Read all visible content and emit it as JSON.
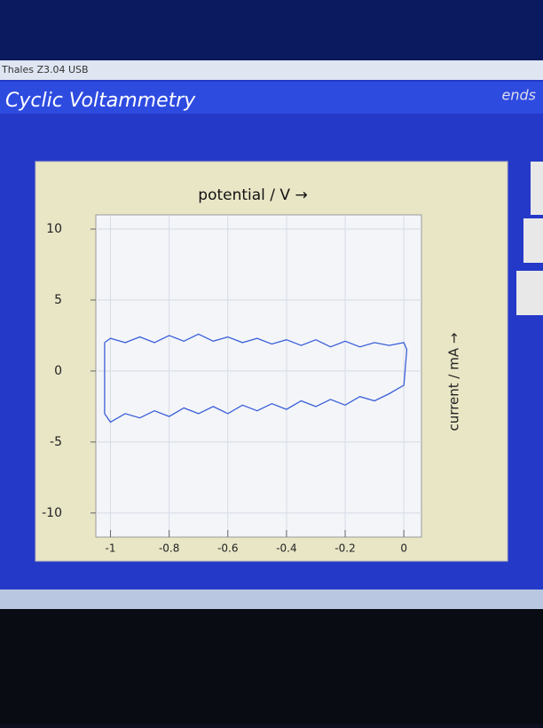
{
  "window_title": "Thales Z3.04 USB",
  "header": {
    "title": "Cyclic Voltammetry",
    "right_text": "ends"
  },
  "chart_data": {
    "type": "line",
    "xlabel": "potential / V →",
    "ylabel": "current / mA →",
    "x": [
      -1.02,
      -1.0,
      -0.95,
      -0.9,
      -0.85,
      -0.8,
      -0.75,
      -0.7,
      -0.65,
      -0.6,
      -0.55,
      -0.5,
      -0.45,
      -0.4,
      -0.35,
      -0.3,
      -0.25,
      -0.2,
      -0.15,
      -0.1,
      -0.05,
      0.0,
      0.01,
      0.0,
      -0.05,
      -0.1,
      -0.15,
      -0.2,
      -0.25,
      -0.3,
      -0.35,
      -0.4,
      -0.45,
      -0.5,
      -0.55,
      -0.6,
      -0.65,
      -0.7,
      -0.75,
      -0.8,
      -0.85,
      -0.9,
      -0.95,
      -1.0,
      -1.02,
      -1.02
    ],
    "values": [
      2.0,
      2.3,
      2.0,
      2.4,
      2.0,
      2.5,
      2.1,
      2.6,
      2.1,
      2.4,
      2.0,
      2.3,
      1.9,
      2.2,
      1.8,
      2.2,
      1.7,
      2.1,
      1.7,
      2.0,
      1.8,
      2.0,
      1.5,
      -1.0,
      -1.6,
      -2.1,
      -1.8,
      -2.4,
      -2.0,
      -2.5,
      -2.1,
      -2.7,
      -2.3,
      -2.8,
      -2.4,
      -3.0,
      -2.5,
      -3.0,
      -2.6,
      -3.2,
      -2.8,
      -3.3,
      -3.0,
      -3.6,
      -3.0,
      2.0
    ],
    "color": "#3a5fd9",
    "xlim": [
      -1.05,
      0.06
    ],
    "xticks": [
      -1,
      -0.8,
      -0.6,
      -0.4,
      -0.2,
      0
    ],
    "ylim": [
      -11.7,
      11
    ],
    "yticks": [
      10,
      5,
      0,
      -5,
      -10
    ],
    "grid": true
  }
}
